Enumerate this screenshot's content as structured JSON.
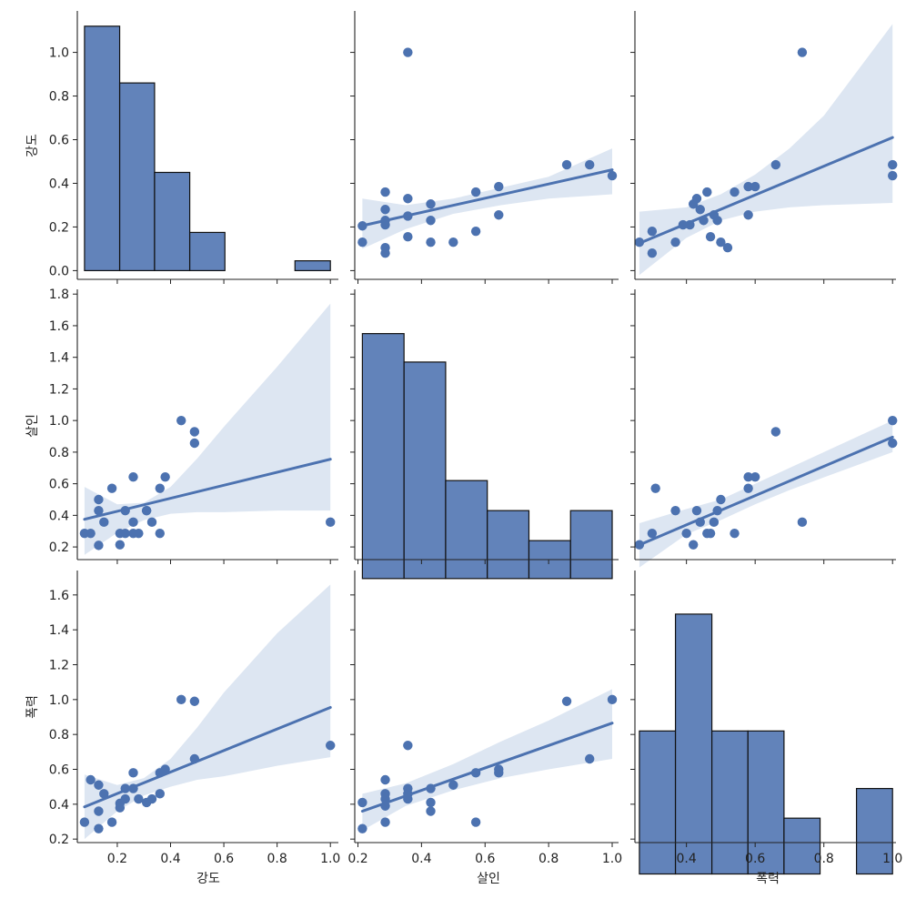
{
  "colors": {
    "primary": "#4c72b0",
    "band": "#dde6f2",
    "hist_edge": "#111111",
    "axis": "#222222"
  },
  "labels": {
    "x_bottom": [
      "강도",
      "살인",
      "폭력"
    ],
    "y_left": [
      "강도",
      "살인",
      "폭력"
    ]
  },
  "chart_data": {
    "type": "scatter",
    "variables": [
      "강도",
      "살인",
      "폭력"
    ],
    "axis_ranges": [
      [
        0.05,
        1.03
      ],
      [
        0.19,
        1.02
      ],
      [
        0.25,
        1.01
      ]
    ],
    "y_ranges": [
      [
        -0.04,
        1.19
      ],
      [
        0.12,
        1.83
      ],
      [
        0.18,
        1.74
      ]
    ],
    "x_ticks": [
      [
        0.2,
        0.4,
        0.6,
        0.8,
        1.0
      ],
      [
        0.2,
        0.4,
        0.6,
        0.8,
        1.0
      ],
      [
        0.4,
        0.6,
        0.8,
        1.0
      ]
    ],
    "y_ticks": [
      [
        0.0,
        0.2,
        0.4,
        0.6,
        0.8,
        1.0
      ],
      [
        0.2,
        0.4,
        0.6,
        0.8,
        1.0,
        1.2,
        1.4,
        1.6,
        1.8
      ],
      [
        0.2,
        0.4,
        0.6,
        0.8,
        1.0,
        1.2,
        1.4,
        1.6
      ]
    ],
    "histograms": [
      {
        "edges": [
          0.077,
          0.209,
          0.34,
          0.472,
          0.604,
          0.735,
          0.867,
          1.0
        ],
        "counts": [
          1.12,
          0.86,
          0.45,
          0.175,
          0.0,
          0.0,
          0.045
        ]
      },
      {
        "edges": [
          0.214,
          0.345,
          0.476,
          0.607,
          0.738,
          0.869,
          1.0
        ],
        "counts": [
          1.55,
          1.37,
          0.62,
          0.43,
          0.24,
          0.43
        ]
      },
      {
        "edges": [
          0.263,
          0.368,
          0.474,
          0.579,
          0.684,
          0.789,
          0.895,
          1.0
        ],
        "counts": [
          0.82,
          1.49,
          0.82,
          0.82,
          0.32,
          0.0,
          0.49
        ]
      }
    ],
    "scatters": [
      {
        "row": 0,
        "col": 1,
        "x": [
          0.214,
          0.286,
          0.286,
          0.286,
          0.286,
          0.286,
          0.357,
          0.357,
          0.357,
          0.357,
          0.429,
          0.429,
          0.429,
          0.5,
          0.571,
          0.571,
          0.643,
          0.643,
          0.857,
          0.929,
          1.0,
          0.214,
          0.286
        ],
        "y": [
          0.13,
          0.36,
          0.28,
          0.23,
          0.21,
          0.105,
          1.0,
          0.33,
          0.25,
          0.155,
          0.305,
          0.23,
          0.13,
          0.13,
          0.36,
          0.18,
          0.385,
          0.255,
          0.485,
          0.485,
          0.435,
          0.205,
          0.08
        ],
        "fit": {
          "x": [
            0.214,
            1.0
          ],
          "y": [
            0.206,
            0.462
          ]
        },
        "band": {
          "x": [
            0.214,
            0.35,
            0.5,
            0.65,
            0.8,
            1.0
          ],
          "lower": [
            0.1,
            0.19,
            0.26,
            0.3,
            0.33,
            0.35
          ],
          "upper": [
            0.33,
            0.3,
            0.33,
            0.38,
            0.43,
            0.56
          ]
        }
      },
      {
        "row": 0,
        "col": 2,
        "x": [
          0.263,
          0.3,
          0.3,
          0.368,
          0.39,
          0.41,
          0.42,
          0.43,
          0.44,
          0.45,
          0.46,
          0.47,
          0.48,
          0.49,
          0.5,
          0.52,
          0.54,
          0.58,
          0.58,
          0.6,
          0.66,
          0.737,
          1.0,
          1.0
        ],
        "y": [
          0.13,
          0.18,
          0.08,
          0.13,
          0.21,
          0.21,
          0.305,
          0.33,
          0.28,
          0.23,
          0.36,
          0.155,
          0.255,
          0.23,
          0.13,
          0.105,
          0.36,
          0.385,
          0.255,
          0.385,
          0.485,
          1.0,
          0.485,
          0.435
        ],
        "fit": {
          "x": [
            0.263,
            1.0
          ],
          "y": [
            0.125,
            0.61
          ]
        },
        "band": {
          "x": [
            0.263,
            0.4,
            0.5,
            0.6,
            0.7,
            0.8,
            1.0
          ],
          "lower": [
            -0.02,
            0.15,
            0.23,
            0.27,
            0.29,
            0.3,
            0.31
          ],
          "upper": [
            0.27,
            0.29,
            0.35,
            0.44,
            0.56,
            0.71,
            1.13
          ]
        }
      },
      {
        "row": 1,
        "col": 0,
        "x": [
          0.077,
          0.1,
          0.13,
          0.13,
          0.13,
          0.15,
          0.18,
          0.21,
          0.21,
          0.23,
          0.23,
          0.26,
          0.26,
          0.26,
          0.28,
          0.31,
          0.31,
          0.33,
          0.36,
          0.36,
          0.38,
          0.44,
          0.49,
          0.49,
          1.0
        ],
        "y": [
          0.286,
          0.286,
          0.5,
          0.43,
          0.21,
          0.357,
          0.571,
          0.286,
          0.214,
          0.43,
          0.286,
          0.643,
          0.357,
          0.286,
          0.286,
          0.43,
          0.43,
          0.357,
          0.571,
          0.286,
          0.643,
          1.0,
          0.929,
          0.857,
          0.357
        ],
        "fit": {
          "x": [
            0.077,
            1.0
          ],
          "y": [
            0.375,
            0.755
          ]
        },
        "band": {
          "x": [
            0.077,
            0.2,
            0.3,
            0.4,
            0.5,
            0.6,
            0.8,
            1.0
          ],
          "lower": [
            0.15,
            0.29,
            0.37,
            0.41,
            0.42,
            0.42,
            0.43,
            0.43
          ],
          "upper": [
            0.58,
            0.47,
            0.48,
            0.58,
            0.76,
            0.96,
            1.34,
            1.74
          ]
        }
      },
      {
        "row": 1,
        "col": 2,
        "x": [
          0.263,
          0.3,
          0.31,
          0.368,
          0.4,
          0.42,
          0.43,
          0.44,
          0.46,
          0.47,
          0.48,
          0.49,
          0.5,
          0.54,
          0.58,
          0.58,
          0.6,
          0.66,
          0.737,
          1.0,
          1.0
        ],
        "y": [
          0.214,
          0.286,
          0.571,
          0.43,
          0.286,
          0.214,
          0.43,
          0.357,
          0.286,
          0.286,
          0.357,
          0.43,
          0.5,
          0.286,
          0.643,
          0.571,
          0.643,
          0.929,
          0.357,
          1.0,
          0.857
        ],
        "fit": {
          "x": [
            0.263,
            1.0
          ],
          "y": [
            0.213,
            0.895
          ]
        },
        "band": {
          "x": [
            0.263,
            0.4,
            0.5,
            0.6,
            0.7,
            0.8,
            1.0
          ],
          "lower": [
            0.07,
            0.28,
            0.37,
            0.47,
            0.56,
            0.64,
            0.8
          ],
          "upper": [
            0.35,
            0.44,
            0.5,
            0.6,
            0.7,
            0.8,
            1.0
          ]
        }
      },
      {
        "row": 2,
        "col": 0,
        "x": [
          0.077,
          0.1,
          0.13,
          0.13,
          0.13,
          0.15,
          0.18,
          0.21,
          0.21,
          0.23,
          0.23,
          0.26,
          0.26,
          0.28,
          0.31,
          0.33,
          0.36,
          0.36,
          0.38,
          0.44,
          0.49,
          0.49,
          1.0
        ],
        "y": [
          0.297,
          0.54,
          0.51,
          0.36,
          0.26,
          0.46,
          0.297,
          0.38,
          0.405,
          0.49,
          0.43,
          0.58,
          0.49,
          0.43,
          0.41,
          0.43,
          0.58,
          0.46,
          0.6,
          1.0,
          0.99,
          0.66,
          0.737
        ],
        "fit": {
          "x": [
            0.077,
            1.0
          ],
          "y": [
            0.385,
            0.955
          ]
        },
        "band": {
          "x": [
            0.077,
            0.2,
            0.3,
            0.4,
            0.5,
            0.6,
            0.8,
            1.0
          ],
          "lower": [
            0.2,
            0.36,
            0.45,
            0.5,
            0.54,
            0.56,
            0.62,
            0.67
          ],
          "upper": [
            0.57,
            0.51,
            0.55,
            0.66,
            0.84,
            1.04,
            1.38,
            1.66
          ]
        }
      },
      {
        "row": 2,
        "col": 1,
        "x": [
          0.214,
          0.214,
          0.286,
          0.286,
          0.286,
          0.286,
          0.286,
          0.357,
          0.357,
          0.357,
          0.357,
          0.429,
          0.429,
          0.429,
          0.5,
          0.571,
          0.571,
          0.643,
          0.643,
          0.857,
          0.929,
          1.0
        ],
        "y": [
          0.41,
          0.26,
          0.54,
          0.46,
          0.43,
          0.39,
          0.297,
          0.737,
          0.49,
          0.46,
          0.43,
          0.49,
          0.41,
          0.36,
          0.51,
          0.58,
          0.297,
          0.6,
          0.58,
          0.99,
          0.66,
          1.0
        ],
        "fit": {
          "x": [
            0.214,
            1.0
          ],
          "y": [
            0.36,
            0.865
          ]
        },
        "band": {
          "x": [
            0.214,
            0.35,
            0.5,
            0.65,
            0.8,
            1.0
          ],
          "lower": [
            0.25,
            0.39,
            0.48,
            0.55,
            0.6,
            0.66
          ],
          "upper": [
            0.46,
            0.52,
            0.63,
            0.76,
            0.88,
            1.06
          ]
        }
      }
    ]
  }
}
